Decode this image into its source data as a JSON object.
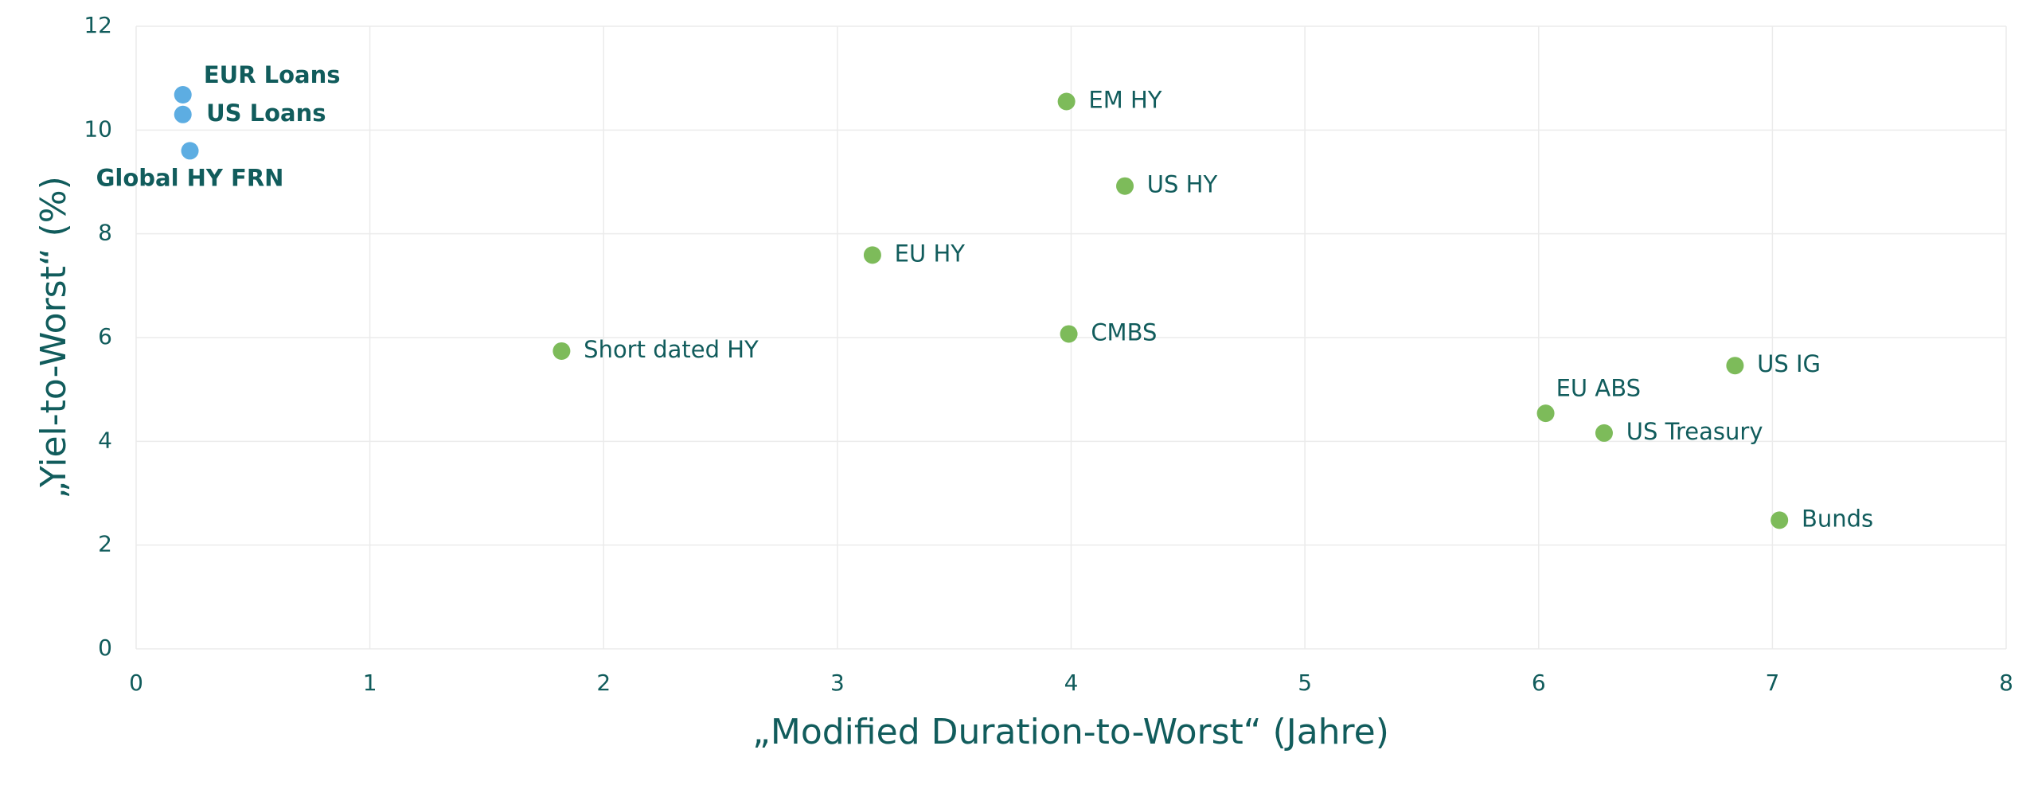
{
  "chart_data": {
    "type": "scatter",
    "xlabel": "„Modified Duration-to-Worst“ (Jahre)",
    "ylabel": "„Yiel-to-Worst“ (%)",
    "xlim": [
      0,
      8
    ],
    "xticks": [
      0,
      1,
      2,
      3,
      4,
      5,
      6,
      7,
      8
    ],
    "ylim": [
      0,
      12
    ],
    "yticks": [
      0,
      2,
      4,
      6,
      8,
      10,
      12
    ],
    "grid": true,
    "series": [
      {
        "color": "#5dade2",
        "labels": [
          "EUR Loans",
          "US Loans",
          "Global HY FRN"
        ],
        "x": [
          0.2,
          0.2,
          0.23
        ],
        "values": [
          10.68,
          10.3,
          9.6
        ]
      },
      {
        "color": "#7dbb5a",
        "labels": [
          "EM HY",
          "US HY",
          "EU HY",
          "CMBS",
          "Short dated HY",
          "US IG",
          "EU ABS",
          "US Treasury",
          "Bunds"
        ],
        "x": [
          3.98,
          4.23,
          3.15,
          3.99,
          1.82,
          6.84,
          6.03,
          6.28,
          7.03
        ],
        "values": [
          10.55,
          8.92,
          7.59,
          6.07,
          5.74,
          5.46,
          4.54,
          4.16,
          2.48
        ]
      }
    ]
  }
}
